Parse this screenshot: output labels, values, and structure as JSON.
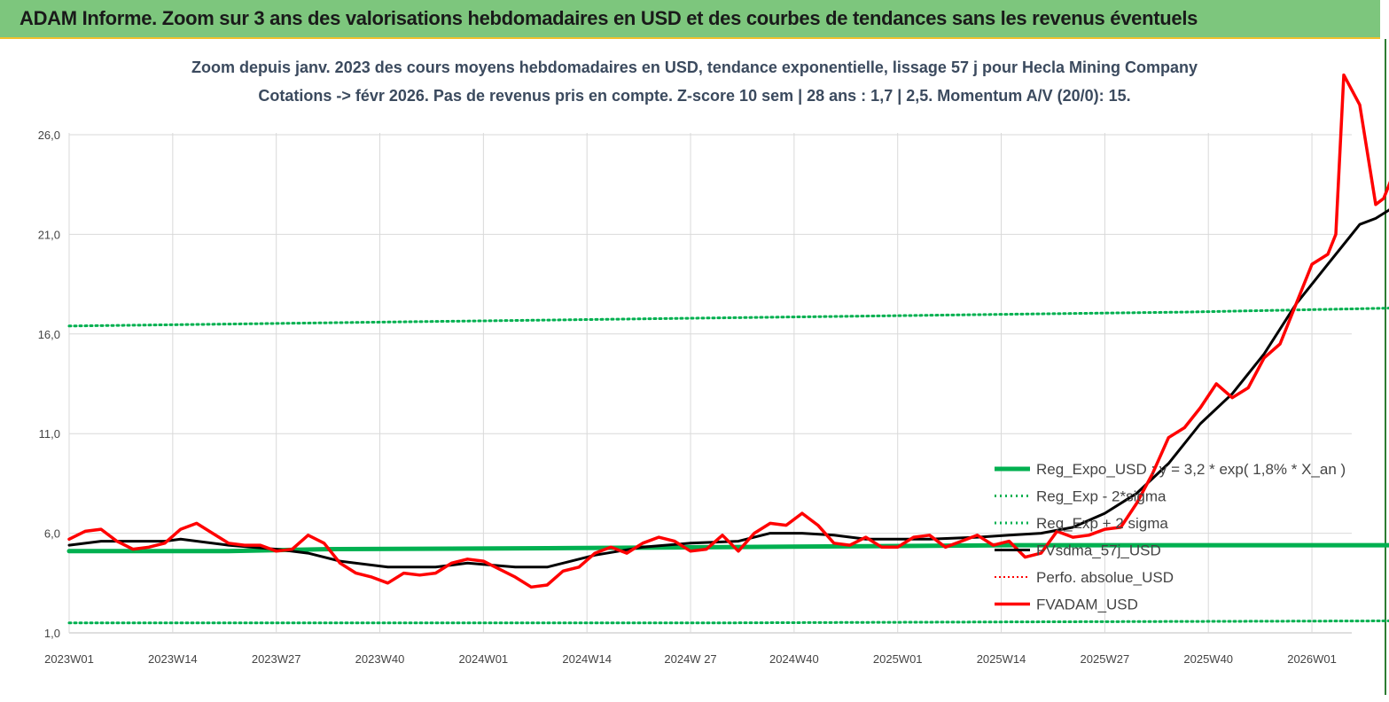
{
  "header": {
    "title": "ADAM Informe. Zoom sur 3 ans des valorisations hebdomadaires en USD et des courbes de tendances sans les revenus éventuels"
  },
  "colors": {
    "banner": "#7dc67d",
    "green": "#00b050",
    "black": "#000000",
    "red": "#ff0000",
    "grid": "#d9d9d9"
  },
  "chart_data": {
    "type": "line",
    "title": "Zoom depuis janv. 2023 des cours moyens hebdomadaires en USD, tendance exponentielle, lissage 57 j pour Hecla Mining Company",
    "subtitle": "Cotations -> févr 2026. Pas de revenus pris en compte. Z-score 10 sem | 28 ans : 1,7 | 2,5. Momentum A/V (20/0): 15.",
    "ylim": [
      1,
      28.5
    ],
    "yticks": [
      1,
      6,
      11,
      16,
      21,
      26
    ],
    "ytick_labels": [
      "1,0",
      "6,0",
      "11,0",
      "16,0",
      "21,0",
      "26,0"
    ],
    "x_count": 162,
    "xticks": [
      {
        "i": 0,
        "label": "2023W01"
      },
      {
        "i": 13,
        "label": "2023W14"
      },
      {
        "i": 26,
        "label": "2023W27"
      },
      {
        "i": 39,
        "label": "2023W40"
      },
      {
        "i": 52,
        "label": "2024W01"
      },
      {
        "i": 65,
        "label": "2024W14"
      },
      {
        "i": 78,
        "label": "2024W 27"
      },
      {
        "i": 91,
        "label": "2024W40"
      },
      {
        "i": 104,
        "label": "2025W01"
      },
      {
        "i": 117,
        "label": "2025W14"
      },
      {
        "i": 130,
        "label": "2025W27"
      },
      {
        "i": 143,
        "label": "2025W40"
      },
      {
        "i": 156,
        "label": "2026W01"
      }
    ],
    "series": [
      {
        "name": "Reg_Expo_USD : y = 3,2 * exp( 1,8% *  X_an )",
        "style": "thick",
        "x": [
          0,
          20,
          32,
          60,
          100,
          120,
          140,
          166
        ],
        "y": [
          5.1,
          5.1,
          5.2,
          5.25,
          5.35,
          5.4,
          5.4,
          5.4
        ]
      },
      {
        "name": "Reg_Exp - 2*sigma",
        "style": "dotted",
        "x": [
          0,
          40,
          80,
          120,
          166
        ],
        "y": [
          1.5,
          1.5,
          1.5,
          1.55,
          1.6
        ]
      },
      {
        "name": "Reg_Exp + 2 sigma",
        "style": "dotted",
        "x": [
          0,
          20,
          40,
          60,
          80,
          100,
          120,
          140,
          166
        ],
        "y": [
          16.4,
          16.5,
          16.6,
          16.7,
          16.8,
          16.9,
          17.0,
          17.1,
          17.3
        ]
      },
      {
        "name": "FVsdma_57j_USD",
        "style": "solid",
        "x": [
          0,
          4,
          8,
          12,
          14,
          20,
          26,
          30,
          34,
          40,
          46,
          50,
          56,
          60,
          66,
          72,
          78,
          84,
          88,
          92,
          96,
          100,
          104,
          108,
          114,
          118,
          122,
          126,
          130,
          134,
          138,
          142,
          146,
          150,
          154,
          158,
          162,
          164,
          166
        ],
        "y": [
          5.4,
          5.6,
          5.6,
          5.6,
          5.7,
          5.4,
          5.2,
          5.0,
          4.6,
          4.3,
          4.3,
          4.5,
          4.3,
          4.3,
          4.9,
          5.3,
          5.5,
          5.6,
          6.0,
          6.0,
          5.9,
          5.7,
          5.7,
          5.7,
          5.8,
          5.9,
          6.0,
          6.3,
          7.0,
          8.0,
          9.5,
          11.5,
          13.0,
          15.0,
          17.5,
          19.5,
          21.5,
          21.8,
          22.3
        ]
      },
      {
        "name": "Perfo. absolue_USD",
        "style": "dotted-red",
        "x": [],
        "y": []
      },
      {
        "name": "FVADAM_USD",
        "style": "red",
        "x": [
          0,
          2,
          4,
          6,
          8,
          10,
          12,
          14,
          16,
          18,
          20,
          22,
          24,
          26,
          28,
          30,
          32,
          34,
          36,
          38,
          40,
          42,
          44,
          46,
          48,
          50,
          52,
          54,
          56,
          58,
          60,
          62,
          64,
          66,
          68,
          70,
          72,
          74,
          76,
          78,
          80,
          82,
          84,
          86,
          88,
          90,
          92,
          94,
          96,
          98,
          100,
          102,
          104,
          106,
          108,
          110,
          112,
          114,
          116,
          118,
          120,
          122,
          124,
          126,
          128,
          130,
          132,
          134,
          136,
          138,
          140,
          142,
          144,
          146,
          148,
          150,
          152,
          154,
          156,
          158,
          159,
          160,
          162,
          164,
          165,
          166
        ],
        "y": [
          5.7,
          6.1,
          6.2,
          5.6,
          5.2,
          5.3,
          5.5,
          6.2,
          6.5,
          6.0,
          5.5,
          5.4,
          5.4,
          5.1,
          5.2,
          5.9,
          5.5,
          4.5,
          4.0,
          3.8,
          3.5,
          4.0,
          3.9,
          4.0,
          4.5,
          4.7,
          4.6,
          4.2,
          3.8,
          3.3,
          3.4,
          4.1,
          4.3,
          5.0,
          5.3,
          5.0,
          5.5,
          5.8,
          5.6,
          5.1,
          5.2,
          5.9,
          5.1,
          6.0,
          6.5,
          6.4,
          7.0,
          6.4,
          5.5,
          5.4,
          5.8,
          5.3,
          5.3,
          5.8,
          5.9,
          5.3,
          5.6,
          5.9,
          5.4,
          5.6,
          4.8,
          5.0,
          6.1,
          5.8,
          5.9,
          6.2,
          6.3,
          7.5,
          9.0,
          10.8,
          11.3,
          12.3,
          13.5,
          12.8,
          13.3,
          14.8,
          15.5,
          17.5,
          19.5,
          20.0,
          21.0,
          29.0,
          27.5,
          22.5,
          22.8,
          23.8
        ]
      }
    ],
    "legend": {
      "position": "center-right",
      "items": [
        "Reg_Expo_USD : y = 3,2 * exp( 1,8% *  X_an )",
        "Reg_Exp - 2*sigma",
        "Reg_Exp + 2 sigma",
        "FVsdma_57j_USD",
        "Perfo. absolue_USD",
        "FVADAM_USD"
      ]
    },
    "grid": {
      "horizontal": true,
      "vertical": true
    }
  }
}
